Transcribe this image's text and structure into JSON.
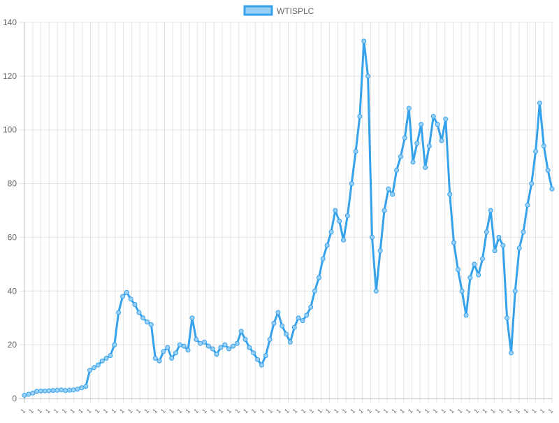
{
  "chart_data": {
    "type": "line",
    "series": [
      {
        "name": "WTISPLC",
        "color": "#36a2eb",
        "fill_color": "#9ad0f5",
        "y": [
          1.2,
          1.6,
          2.0,
          2.7,
          2.8,
          2.8,
          2.9,
          3.0,
          3.1,
          3.2,
          3.0,
          3.1,
          3.2,
          3.5,
          4.0,
          4.5,
          10.5,
          11.5,
          12.5,
          14.0,
          15.0,
          16.0,
          20.0,
          32.0,
          38.0,
          39.5,
          37.0,
          35.0,
          32.0,
          30.0,
          28.5,
          27.5,
          15.0,
          14.0,
          17.5,
          19.0,
          15.0,
          17.0,
          20.0,
          19.5,
          18.0,
          30.0,
          22.0,
          20.5,
          21.0,
          19.5,
          18.5,
          16.5,
          19.0,
          20.0,
          18.5,
          19.5,
          20.5,
          25.0,
          22.0,
          19.0,
          17.0,
          14.5,
          12.5,
          16.0,
          22.0,
          28.0,
          32.0,
          27.0,
          24.0,
          21.0,
          26.5,
          30.0,
          29.0,
          31.0,
          34.0,
          40.0,
          45.0,
          52.0,
          57.0,
          62.0,
          70.0,
          66.0,
          59.0,
          68.0,
          80.0,
          92.0,
          105.0,
          133.0,
          120.0,
          60.0,
          40.0,
          55.0,
          70.0,
          78.0,
          76.0,
          85.0,
          90.0,
          97.0,
          108.0,
          88.0,
          95.0,
          102.0,
          86.0,
          94.0,
          105.0,
          102.0,
          96.0,
          104.0,
          76.0,
          58.0,
          48.0,
          40.0,
          31.0,
          45.0,
          50.0,
          46.0,
          52.0,
          62.0,
          70.0,
          55.0,
          60.0,
          57.0,
          30.0,
          17.0,
          40.0,
          56.0,
          62.0,
          72.0,
          80.0,
          92.0,
          110.0,
          94.0,
          85.0,
          78.0
        ],
        "note": ""
      }
    ],
    "x_tick_label": "1",
    "x_tick_count": 65,
    "ylim": [
      0,
      140
    ],
    "yticks": [
      0,
      20,
      40,
      60,
      80,
      100,
      120,
      140
    ],
    "legend_position": "top",
    "grid": true,
    "title": "",
    "xlabel": "",
    "ylabel": ""
  }
}
